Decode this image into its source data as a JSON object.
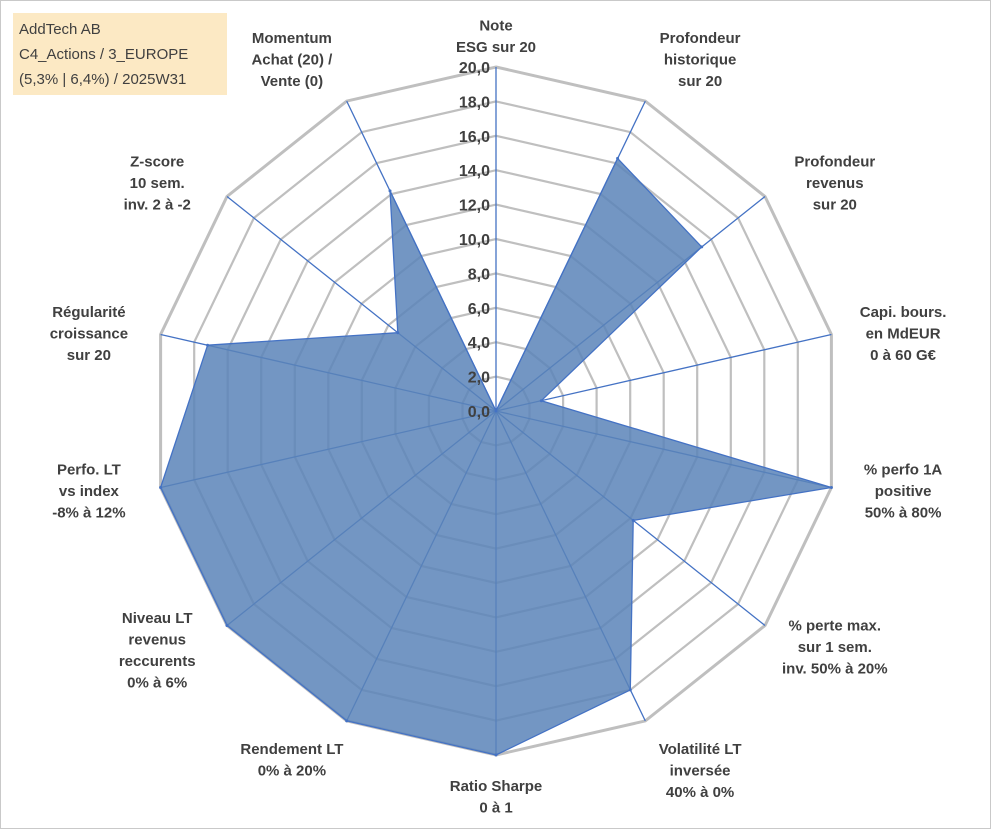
{
  "info": {
    "line1": "AddTech AB",
    "line2": "C4_Actions / 3_EUROPE",
    "line3": "(5,3% | 6,4%) / 2025W31"
  },
  "colors": {
    "grid": "#bfbfbf",
    "axis": "#4472c4",
    "fill": "#5b84b8",
    "fill_opacity": 0.85,
    "text": "#404040",
    "info_background": "#fce9c4"
  },
  "chart_data": {
    "type": "radar",
    "range": [
      0,
      20
    ],
    "ticks": [
      "0,0",
      "2,0",
      "4,0",
      "6,0",
      "8,0",
      "10,0",
      "12,0",
      "14,0",
      "16,0",
      "18,0",
      "20,0"
    ],
    "axes": [
      {
        "lines": [
          "Note",
          "ESG sur 20"
        ]
      },
      {
        "lines": [
          "Profondeur",
          "historique",
          "sur 20"
        ]
      },
      {
        "lines": [
          "Profondeur",
          "revenus",
          "sur 20"
        ]
      },
      {
        "lines": [
          "Capi. bours.",
          "en MdEUR",
          "0 à 60 G€"
        ]
      },
      {
        "lines": [
          "% perfo 1A",
          "positive",
          "50% à 80%"
        ]
      },
      {
        "lines": [
          "% perte max.",
          "sur 1 sem.",
          "inv. 50% à 20%"
        ]
      },
      {
        "lines": [
          "Volatilité LT",
          "inversée",
          "40% à 0%"
        ]
      },
      {
        "lines": [
          "Ratio Sharpe",
          "0 à 1"
        ]
      },
      {
        "lines": [
          "Rendement LT",
          "0% à 20%"
        ]
      },
      {
        "lines": [
          "Niveau LT",
          "revenus",
          "reccurents",
          "0% à 6%"
        ]
      },
      {
        "lines": [
          "Perfo. LT",
          "vs index",
          "-8% à 12%"
        ]
      },
      {
        "lines": [
          "Régularité",
          "croissance",
          "sur 20"
        ]
      },
      {
        "lines": [
          "Z-score",
          "10 sem.",
          "inv. 2 à -2"
        ]
      },
      {
        "lines": [
          "Momentum",
          "Achat (20) /",
          "Vente (0)"
        ]
      }
    ],
    "values": [
      0.0,
      16.3,
      15.3,
      2.7,
      20.0,
      10.2,
      18.0,
      20.0,
      20.0,
      20.0,
      20.0,
      17.2,
      7.3,
      14.2
    ],
    "grid": true,
    "legend": "none"
  }
}
